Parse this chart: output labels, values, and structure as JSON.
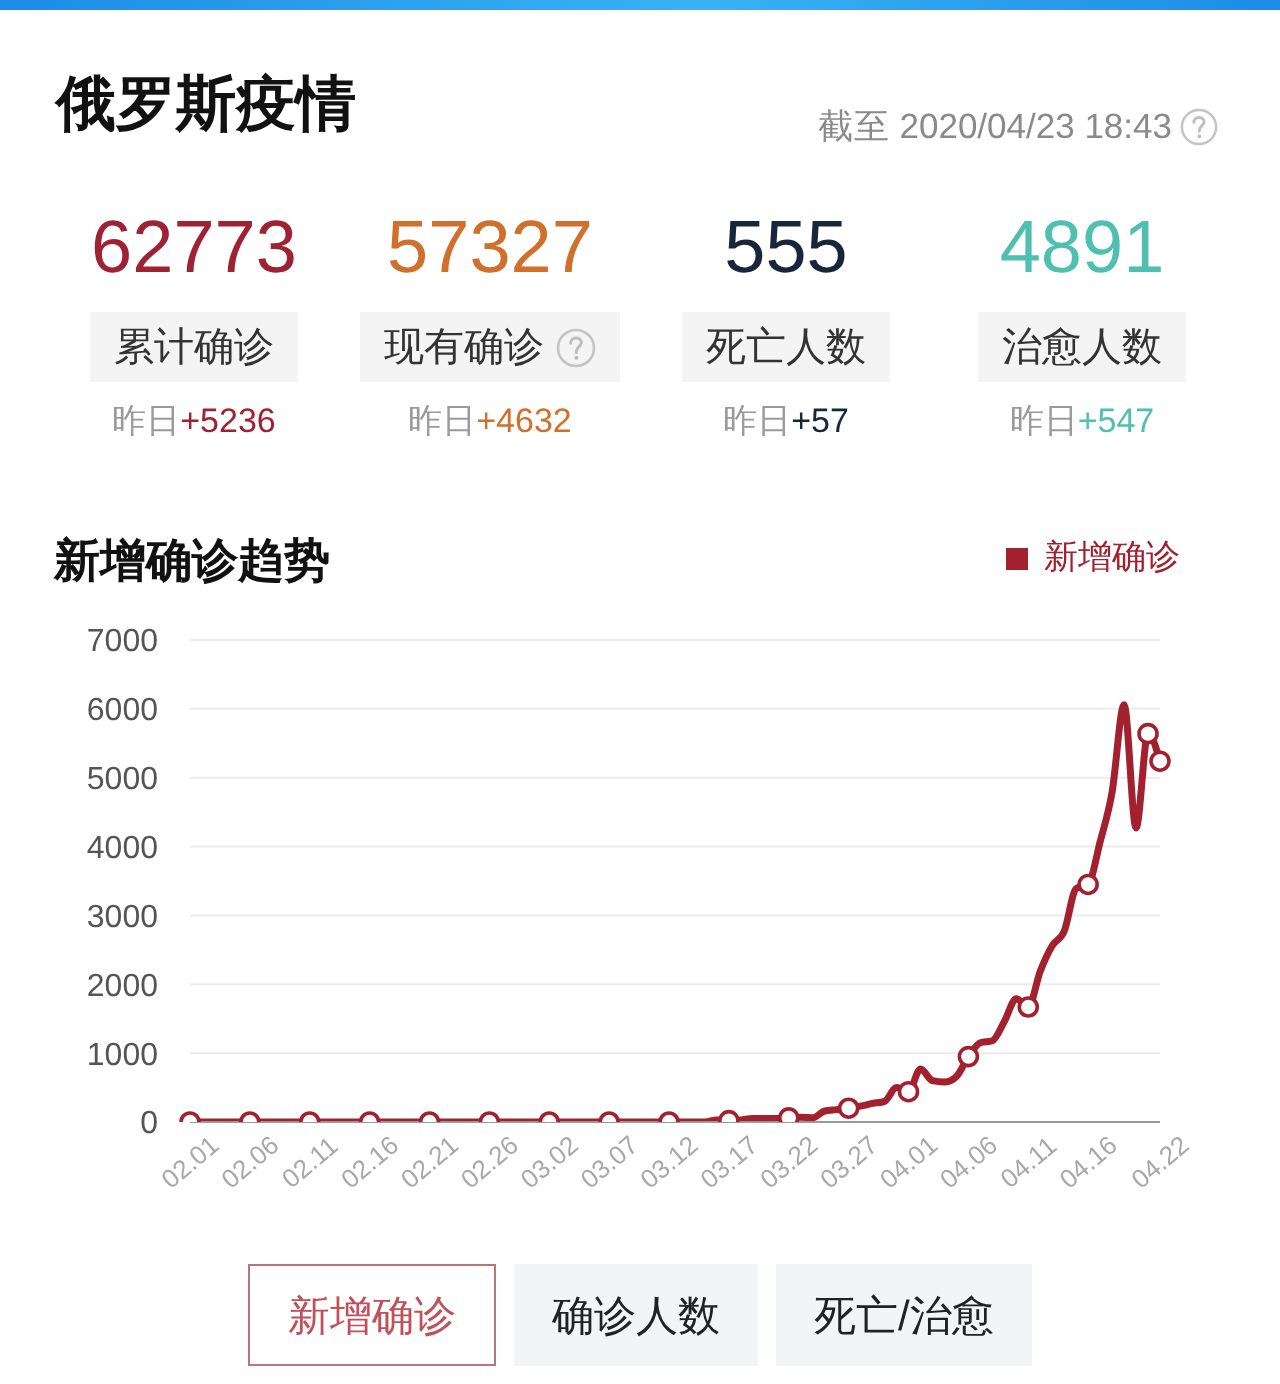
{
  "chart_data": [
    {
      "type": "other",
      "title": "俄罗斯疫情",
      "subtitle": "截至 2020/04/23 18:43",
      "categories": [
        "累计确诊",
        "现有确诊",
        "死亡人数",
        "治愈人数"
      ],
      "values": [
        62773,
        57327,
        555,
        4891
      ],
      "data_labels": true,
      "annotations": [
        "昨日+5236",
        "昨日+4632",
        "昨日+57",
        "昨日+547"
      ]
    },
    {
      "type": "line",
      "title": "新增确诊趋势",
      "categories": [
        "02.01",
        null,
        null,
        null,
        null,
        "02.06",
        null,
        null,
        null,
        null,
        "02.11",
        null,
        null,
        null,
        null,
        "02.16",
        null,
        null,
        null,
        null,
        "02.21",
        null,
        null,
        null,
        null,
        "02.26",
        null,
        null,
        null,
        null,
        "03.02",
        null,
        null,
        null,
        null,
        "03.07",
        null,
        null,
        null,
        null,
        "03.12",
        null,
        null,
        null,
        null,
        "03.17",
        null,
        null,
        null,
        null,
        "03.22",
        null,
        null,
        null,
        null,
        "03.27",
        null,
        null,
        null,
        null,
        "04.01",
        null,
        null,
        null,
        null,
        "04.06",
        null,
        null,
        null,
        null,
        "04.11",
        null,
        null,
        null,
        null,
        "04.16",
        null,
        null,
        null,
        null,
        null,
        "04.22"
      ],
      "series": [
        {
          "name": "新增确诊",
          "color": "#a3202e",
          "values": [
            0,
            0,
            0,
            0,
            0,
            0,
            0,
            0,
            0,
            0,
            0,
            0,
            0,
            0,
            0,
            0,
            0,
            0,
            0,
            0,
            0,
            0,
            0,
            0,
            0,
            0,
            0,
            0,
            0,
            0,
            0,
            0,
            0,
            0,
            0,
            0,
            0,
            0,
            0,
            0,
            0,
            0,
            0,
            0,
            30,
            20,
            30,
            50,
            50,
            50,
            60,
            70,
            60,
            160,
            180,
            200,
            230,
            270,
            300,
            500,
            440,
            770,
            600,
            580,
            660,
            950,
            1150,
            1180,
            1460,
            1790,
            1670,
            2190,
            2560,
            2770,
            3390,
            3450,
            4070,
            4790,
            6060,
            4270,
            5640,
            5240
          ]
        },
        {
          "type": "scatter",
          "color": "#a3202e",
          "values": [
            0,
            null,
            null,
            null,
            null,
            0,
            null,
            null,
            null,
            null,
            0,
            null,
            null,
            null,
            null,
            0,
            null,
            null,
            null,
            null,
            0,
            null,
            null,
            null,
            null,
            0,
            null,
            null,
            null,
            null,
            0,
            null,
            null,
            null,
            null,
            0,
            null,
            null,
            null,
            null,
            0,
            null,
            null,
            null,
            null,
            20,
            null,
            null,
            null,
            null,
            60,
            null,
            null,
            null,
            null,
            200,
            null,
            null,
            null,
            null,
            440,
            null,
            null,
            null,
            null,
            950,
            null,
            null,
            null,
            null,
            1670,
            null,
            null,
            null,
            null,
            3450,
            null,
            null,
            null,
            null,
            5640,
            5240
          ]
        }
      ],
      "ylim": [
        0,
        7000
      ],
      "yticks": [
        0,
        1000,
        2000,
        3000,
        4000,
        5000,
        6000,
        7000
      ],
      "grid": "y",
      "legend": "top right",
      "line_style": "solid"
    },
    {
      "type": "other",
      "annotations": [
        "新增确诊",
        "确诊人数",
        "死亡/治愈"
      ]
    }
  ]
}
